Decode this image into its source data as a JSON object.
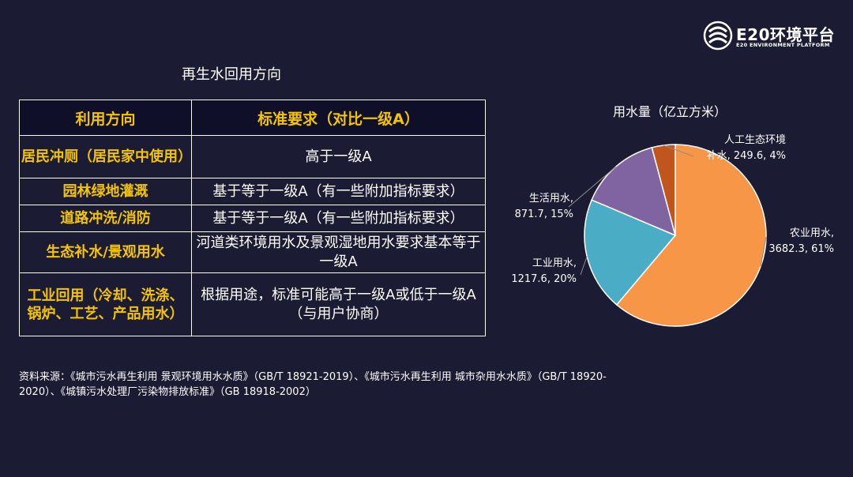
{
  "logo": {
    "name": "E20环境平台",
    "subtitle": "E20 ENVIRONMENT PLATFORM"
  },
  "table": {
    "title": "再生水回用方向",
    "headers": [
      "利用方向",
      "标准要求（对比一级A）"
    ],
    "rows": [
      {
        "direction": "居民冲厕（居民家中使用）",
        "requirement": "高于一级A"
      },
      {
        "direction": "园林绿地灌溉",
        "requirement": "基于等于一级A（有一些附加指标要求）"
      },
      {
        "direction": "道路冲洗/消防",
        "requirement": "基于等于一级A（有一些附加指标要求）"
      },
      {
        "direction": "生态补水/景观用水",
        "requirement": "河道类环境用水及景观湿地用水要求基本等于一级A"
      },
      {
        "direction": "工业回用（冷却、洗涤、锅炉、工艺、产品用水）",
        "requirement": "根据用途，标准可能高于一级A或低于一级A（与用户协商）"
      }
    ]
  },
  "source": "资料来源：《城市污水再生利用 景观环境用水水质》（GB/T 18921-2019）、《城市污水再生利用 城市杂用水水质》（GB/T 18920-2020）、《城镇污水处理厂污染物排放标准》（GB 18918-2002）",
  "chart_data": {
    "type": "pie",
    "title": "用水量（亿立方米）",
    "slices": [
      {
        "label_line1": "农业用水,",
        "label_line2": "3682.3, 61%",
        "value": 3682.3,
        "percent": 61,
        "color": "#f79646"
      },
      {
        "label_line1": "工业用水,",
        "label_line2": "1217.6, 20%",
        "value": 1217.6,
        "percent": 20,
        "color": "#4bacc6"
      },
      {
        "label_line1": "生活用水,",
        "label_line2": "871.7, 15%",
        "value": 871.7,
        "percent": 15,
        "color": "#8064a2"
      },
      {
        "label_line1": "人工生态环境",
        "label_line2": "补水, 249.6, 4%",
        "value": 249.6,
        "percent": 4,
        "color": "#c0561c"
      }
    ]
  }
}
